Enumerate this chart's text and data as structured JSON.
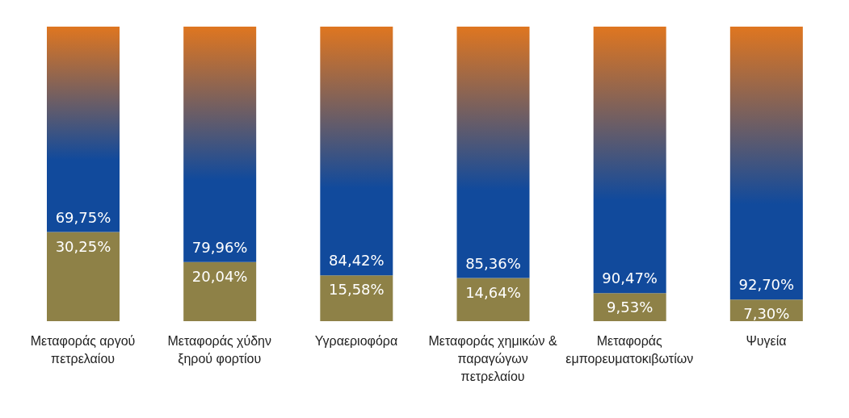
{
  "chart_data": {
    "type": "bar",
    "stacked": true,
    "categories": [
      "Μεταφοράς αργού πετρελαίου",
      "Μεταφοράς χύδην ξηρού φορτίου",
      "Υγραεριοφόρα",
      "Μεταφοράς χημικών & παραγώγων πετρελαίου",
      "Μεταφοράς εμπορευματοκιβωτίων",
      "Ψυγεία"
    ],
    "ylim": [
      0,
      100
    ],
    "series": [
      {
        "color": "#8e8147",
        "values": [
          30.25,
          20.04,
          15.58,
          14.64,
          9.53,
          7.3
        ],
        "value_labels": [
          "30,25%",
          "20,04%",
          "15,58%",
          "14,64%",
          "9,53%",
          "7,30%"
        ]
      },
      {
        "color": "#114a9c",
        "values": [
          69.75,
          79.96,
          84.42,
          85.36,
          90.47,
          92.7
        ],
        "value_labels": [
          "69,75%",
          "79,96%",
          "84,42%",
          "85,36%",
          "90,47%",
          "92,70%"
        ]
      }
    ]
  }
}
